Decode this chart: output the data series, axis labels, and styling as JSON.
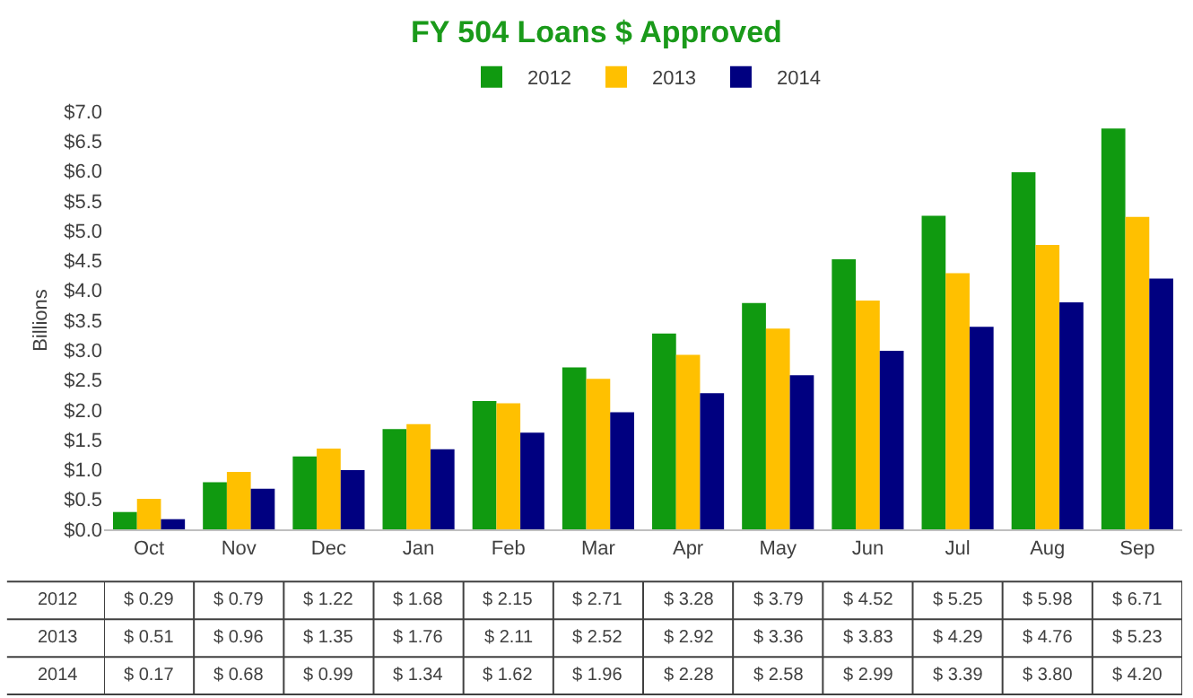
{
  "chart_data": {
    "type": "bar",
    "title": "FY 504 Loans $ Approved",
    "ylabel": "Billions",
    "categories": [
      "Oct",
      "Nov",
      "Dec",
      "Jan",
      "Feb",
      "Mar",
      "Apr",
      "May",
      "Jun",
      "Jul",
      "Aug",
      "Sep"
    ],
    "series": [
      {
        "name": "2012",
        "color": "#109a10",
        "values": [
          0.29,
          0.79,
          1.22,
          1.68,
          2.15,
          2.71,
          3.28,
          3.79,
          4.52,
          5.25,
          5.98,
          6.71
        ],
        "value_labels": [
          "$ 0.29",
          "$ 0.79",
          "$ 1.22",
          "$ 1.68",
          "$ 2.15",
          "$ 2.71",
          "$ 3.28",
          "$ 3.79",
          "$ 4.52",
          "$ 5.25",
          "$ 5.98",
          "$ 6.71"
        ]
      },
      {
        "name": "2013",
        "color": "#ffc000",
        "values": [
          0.51,
          0.96,
          1.35,
          1.76,
          2.11,
          2.52,
          2.92,
          3.36,
          3.83,
          4.29,
          4.76,
          5.23
        ],
        "value_labels": [
          "$ 0.51",
          "$ 0.96",
          "$ 1.35",
          "$ 1.76",
          "$ 2.11",
          "$ 2.52",
          "$ 2.92",
          "$ 3.36",
          "$ 3.83",
          "$ 4.29",
          "$ 4.76",
          "$ 5.23"
        ]
      },
      {
        "name": "2014",
        "color": "#000080",
        "values": [
          0.17,
          0.68,
          0.99,
          1.34,
          1.62,
          1.96,
          2.28,
          2.58,
          2.99,
          3.39,
          3.8,
          4.2
        ],
        "value_labels": [
          "$ 0.17",
          "$ 0.68",
          "$ 0.99",
          "$ 1.34",
          "$ 1.62",
          "$ 1.96",
          "$ 2.28",
          "$ 2.58",
          "$ 2.99",
          "$ 3.39",
          "$ 3.80",
          "$ 4.20"
        ]
      }
    ],
    "ylim": [
      0,
      7
    ],
    "yticks": [
      {
        "value": 0,
        "label": "$0.0"
      },
      {
        "value": 0.5,
        "label": "$0.5"
      },
      {
        "value": 1,
        "label": "$1.0"
      },
      {
        "value": 1.5,
        "label": "$1.5"
      },
      {
        "value": 2,
        "label": "$2.0"
      },
      {
        "value": 2.5,
        "label": "$2.5"
      },
      {
        "value": 3,
        "label": "$3.0"
      },
      {
        "value": 3.5,
        "label": "$3.5"
      },
      {
        "value": 4,
        "label": "$4.0"
      },
      {
        "value": 4.5,
        "label": "$4.5"
      },
      {
        "value": 5,
        "label": "$5.0"
      },
      {
        "value": 5.5,
        "label": "$5.5"
      },
      {
        "value": 6,
        "label": "$6.0"
      },
      {
        "value": 6.5,
        "label": "$6.5"
      },
      {
        "value": 7,
        "label": "$7.0"
      }
    ],
    "grid": false,
    "legend": "top"
  }
}
